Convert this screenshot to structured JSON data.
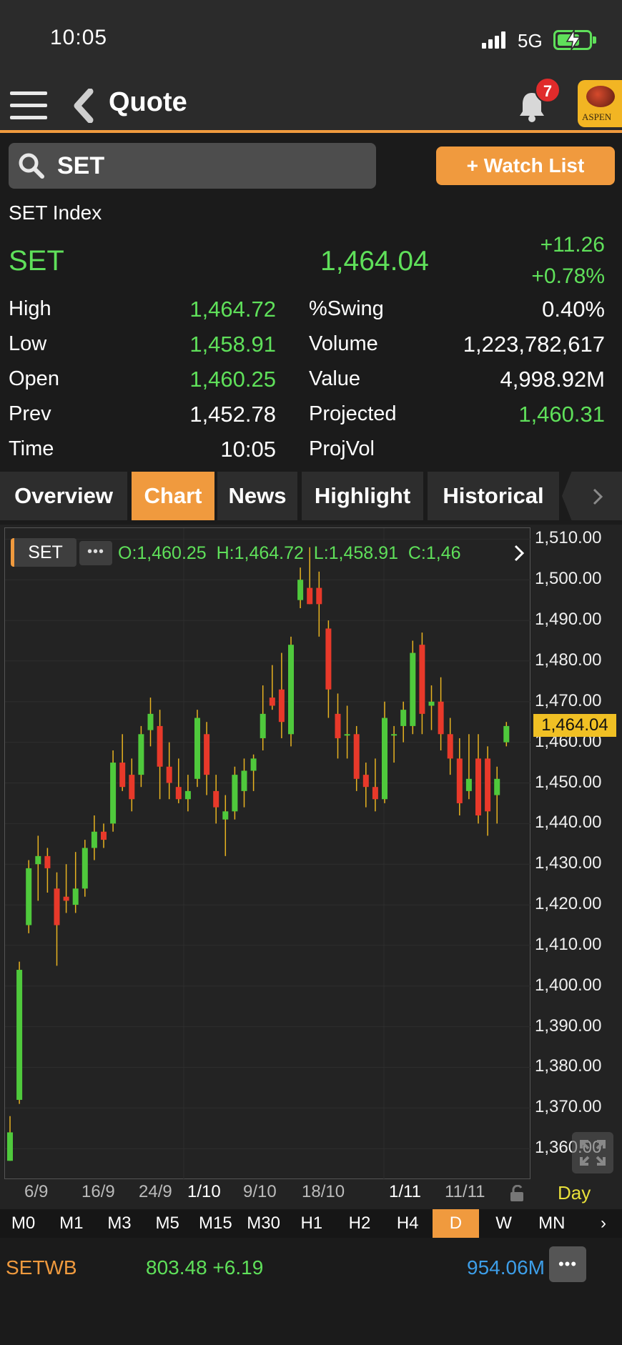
{
  "status_bar": {
    "time": "10:05",
    "network": "5G"
  },
  "header": {
    "title": "Quote",
    "notification_count": "7",
    "logo_text": "ASPEN"
  },
  "search": {
    "symbol": "SET",
    "watchlist_label": "+ Watch List"
  },
  "quote": {
    "name": "SET Index",
    "symbol": "SET",
    "last": "1,464.04",
    "change": "+11.26",
    "change_pct": "+0.78%",
    "stats_left": [
      {
        "label": "High",
        "value": "1,464.72",
        "color": "#5fe05a"
      },
      {
        "label": "Low",
        "value": "1,458.91",
        "color": "#5fe05a"
      },
      {
        "label": "Open",
        "value": "1,460.25",
        "color": "#5fe05a"
      },
      {
        "label": "Prev",
        "value": "1,452.78",
        "color": "#ffffff"
      },
      {
        "label": "Time",
        "value": "10:05",
        "color": "#ffffff"
      }
    ],
    "stats_right": [
      {
        "label": "%Swing",
        "value": "0.40%",
        "color": "#ffffff"
      },
      {
        "label": "Volume",
        "value": "1,223,782,617",
        "color": "#ffffff"
      },
      {
        "label": "Value",
        "value": "4,998.92M",
        "color": "#ffffff"
      },
      {
        "label": "Projected",
        "value": "1,460.31",
        "color": "#5fe05a"
      },
      {
        "label": "ProjVol",
        "value": "",
        "color": "#ffffff"
      }
    ]
  },
  "tabs": [
    "Overview",
    "Chart",
    "News",
    "Highlight",
    "Historical"
  ],
  "active_tab": "Chart",
  "chart_legend": {
    "symbol": "SET",
    "ohlc": "O:1,460.25  H:1,464.72  L:1,458.91  C:1,46"
  },
  "chart_data": {
    "type": "candlestick",
    "ylim": [
      1353,
      1512
    ],
    "y_ticks": [
      "1,510.00",
      "1,500.00",
      "1,490.00",
      "1,480.00",
      "1,470.00",
      "1,460.00",
      "1,450.00",
      "1,440.00",
      "1,430.00",
      "1,420.00",
      "1,410.00",
      "1,400.00",
      "1,390.00",
      "1,380.00",
      "1,370.00",
      "1,360.00"
    ],
    "x_labels": [
      "6/9",
      "16/9",
      "24/9",
      "1/10",
      "9/10",
      "18/10",
      "1/11",
      "11/11"
    ],
    "last_price": "1,464.04",
    "up_color": "#4fc93c",
    "down_color": "#e8392a",
    "candles": [
      {
        "o": 1357,
        "h": 1368,
        "l": 1357,
        "c": 1364
      },
      {
        "o": 1372,
        "h": 1406,
        "l": 1371,
        "c": 1404
      },
      {
        "o": 1415,
        "h": 1431,
        "l": 1413,
        "c": 1429
      },
      {
        "o": 1430,
        "h": 1437,
        "l": 1421,
        "c": 1432
      },
      {
        "o": 1432,
        "h": 1434,
        "l": 1423,
        "c": 1429
      },
      {
        "o": 1424,
        "h": 1428,
        "l": 1405,
        "c": 1415
      },
      {
        "o": 1422,
        "h": 1430,
        "l": 1418,
        "c": 1421
      },
      {
        "o": 1420,
        "h": 1433,
        "l": 1418,
        "c": 1424
      },
      {
        "o": 1424,
        "h": 1436,
        "l": 1422,
        "c": 1434
      },
      {
        "o": 1434,
        "h": 1442,
        "l": 1431,
        "c": 1438
      },
      {
        "o": 1438,
        "h": 1440,
        "l": 1434,
        "c": 1436
      },
      {
        "o": 1440,
        "h": 1458,
        "l": 1438,
        "c": 1455
      },
      {
        "o": 1455,
        "h": 1462,
        "l": 1448,
        "c": 1449
      },
      {
        "o": 1452,
        "h": 1456,
        "l": 1443,
        "c": 1446
      },
      {
        "o": 1452,
        "h": 1464,
        "l": 1449,
        "c": 1462
      },
      {
        "o": 1463,
        "h": 1471,
        "l": 1459,
        "c": 1467
      },
      {
        "o": 1464,
        "h": 1468,
        "l": 1446,
        "c": 1454
      },
      {
        "o": 1454,
        "h": 1460,
        "l": 1446,
        "c": 1450
      },
      {
        "o": 1449,
        "h": 1456,
        "l": 1445,
        "c": 1446
      },
      {
        "o": 1446,
        "h": 1452,
        "l": 1443,
        "c": 1448
      },
      {
        "o": 1451,
        "h": 1468,
        "l": 1449,
        "c": 1466
      },
      {
        "o": 1462,
        "h": 1465,
        "l": 1447,
        "c": 1452
      },
      {
        "o": 1448,
        "h": 1452,
        "l": 1440,
        "c": 1444
      },
      {
        "o": 1441,
        "h": 1447,
        "l": 1432,
        "c": 1443
      },
      {
        "o": 1443,
        "h": 1454,
        "l": 1441,
        "c": 1452
      },
      {
        "o": 1448,
        "h": 1456,
        "l": 1444,
        "c": 1453
      },
      {
        "o": 1453,
        "h": 1457,
        "l": 1448,
        "c": 1456
      },
      {
        "o": 1461,
        "h": 1474,
        "l": 1458,
        "c": 1467
      },
      {
        "o": 1471,
        "h": 1479,
        "l": 1468,
        "c": 1469
      },
      {
        "o": 1473,
        "h": 1482,
        "l": 1461,
        "c": 1465
      },
      {
        "o": 1462,
        "h": 1486,
        "l": 1459,
        "c": 1484
      },
      {
        "o": 1495,
        "h": 1503,
        "l": 1493,
        "c": 1500
      },
      {
        "o": 1498,
        "h": 1508,
        "l": 1494,
        "c": 1494
      },
      {
        "o": 1498,
        "h": 1502,
        "l": 1486,
        "c": 1494
      },
      {
        "o": 1488,
        "h": 1490,
        "l": 1466,
        "c": 1473
      },
      {
        "o": 1467,
        "h": 1472,
        "l": 1456,
        "c": 1461
      },
      {
        "o": 1462,
        "h": 1469,
        "l": 1456,
        "c": 1462
      },
      {
        "o": 1462,
        "h": 1464,
        "l": 1448,
        "c": 1451
      },
      {
        "o": 1452,
        "h": 1455,
        "l": 1444,
        "c": 1449
      },
      {
        "o": 1449,
        "h": 1456,
        "l": 1443,
        "c": 1446
      },
      {
        "o": 1446,
        "h": 1470,
        "l": 1445,
        "c": 1466
      },
      {
        "o": 1462,
        "h": 1464,
        "l": 1455,
        "c": 1462
      },
      {
        "o": 1464,
        "h": 1470,
        "l": 1460,
        "c": 1468
      },
      {
        "o": 1464,
        "h": 1485,
        "l": 1462,
        "c": 1482
      },
      {
        "o": 1484,
        "h": 1487,
        "l": 1462,
        "c": 1467
      },
      {
        "o": 1469,
        "h": 1474,
        "l": 1463,
        "c": 1470
      },
      {
        "o": 1470,
        "h": 1476,
        "l": 1458,
        "c": 1462
      },
      {
        "o": 1462,
        "h": 1466,
        "l": 1452,
        "c": 1456
      },
      {
        "o": 1456,
        "h": 1461,
        "l": 1442,
        "c": 1445
      },
      {
        "o": 1448,
        "h": 1462,
        "l": 1446,
        "c": 1451
      },
      {
        "o": 1456,
        "h": 1462,
        "l": 1440,
        "c": 1442
      },
      {
        "o": 1456,
        "h": 1459,
        "l": 1437,
        "c": 1443
      },
      {
        "o": 1447,
        "h": 1454,
        "l": 1440,
        "c": 1451
      },
      {
        "o": 1460,
        "h": 1465,
        "l": 1459,
        "c": 1464
      }
    ]
  },
  "chart_footer": {
    "interval": "Day"
  },
  "periods": [
    "M0",
    "M1",
    "M3",
    "M5",
    "M15",
    "M30",
    "H1",
    "H2",
    "H4",
    "D",
    "W",
    "MN"
  ],
  "active_period": "D",
  "ticker": {
    "symbol": "SETWB",
    "price_change": "803.48 +6.19",
    "value": "954.06M"
  }
}
